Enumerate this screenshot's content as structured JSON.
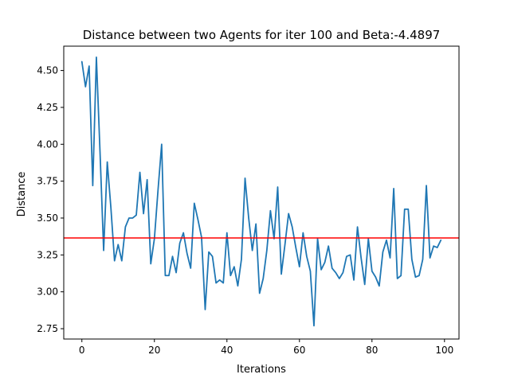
{
  "chart_data": {
    "type": "line",
    "title": "Distance between two Agents for iter 100 and Beta:-4.4897",
    "xlabel": "Iterations",
    "ylabel": "Distance",
    "xlim": [
      -5,
      104
    ],
    "ylim": [
      2.68,
      4.665
    ],
    "xticks": [
      0,
      20,
      40,
      60,
      80,
      100
    ],
    "yticks": [
      2.75,
      3.0,
      3.25,
      3.5,
      3.75,
      4.0,
      4.25,
      4.5
    ],
    "ytick_labels": [
      "2.75",
      "3.00",
      "3.25",
      "3.50",
      "3.75",
      "4.00",
      "4.25",
      "4.50"
    ],
    "xtick_labels": [
      "0",
      "20",
      "40",
      "60",
      "80",
      "100"
    ],
    "grid": false,
    "series": [
      {
        "color": "#1f77b4",
        "x": [
          0,
          1,
          2,
          3,
          4,
          5,
          6,
          7,
          8,
          9,
          10,
          11,
          12,
          13,
          14,
          15,
          16,
          17,
          18,
          19,
          20,
          21,
          22,
          23,
          24,
          25,
          26,
          27,
          28,
          29,
          30,
          31,
          32,
          33,
          34,
          35,
          36,
          37,
          38,
          39,
          40,
          41,
          42,
          43,
          44,
          45,
          46,
          47,
          48,
          49,
          50,
          51,
          52,
          53,
          54,
          55,
          56,
          57,
          58,
          59,
          60,
          61,
          62,
          63,
          64,
          65,
          66,
          67,
          68,
          69,
          70,
          71,
          72,
          73,
          74,
          75,
          76,
          77,
          78,
          79,
          80,
          81,
          82,
          83,
          84,
          85,
          86,
          87,
          88,
          89,
          90,
          91,
          92,
          93,
          94,
          95,
          96,
          97,
          98,
          99
        ],
        "y": [
          4.56,
          4.39,
          4.53,
          3.72,
          4.59,
          3.95,
          3.28,
          3.88,
          3.57,
          3.21,
          3.32,
          3.21,
          3.44,
          3.5,
          3.5,
          3.52,
          3.81,
          3.53,
          3.76,
          3.19,
          3.36,
          3.69,
          4.0,
          3.11,
          3.11,
          3.24,
          3.13,
          3.33,
          3.4,
          3.26,
          3.16,
          3.6,
          3.49,
          3.37,
          2.88,
          3.27,
          3.24,
          3.06,
          3.08,
          3.06,
          3.4,
          3.11,
          3.17,
          3.04,
          3.22,
          3.77,
          3.5,
          3.28,
          3.46,
          2.99,
          3.09,
          3.28,
          3.55,
          3.36,
          3.71,
          3.12,
          3.32,
          3.53,
          3.44,
          3.3,
          3.17,
          3.4,
          3.24,
          3.14,
          2.77,
          3.36,
          3.15,
          3.2,
          3.31,
          3.16,
          3.13,
          3.09,
          3.13,
          3.24,
          3.25,
          3.08,
          3.44,
          3.23,
          3.05,
          3.36,
          3.14,
          3.1,
          3.04,
          3.27,
          3.35,
          3.23,
          3.7,
          3.09,
          3.11,
          3.56,
          3.56,
          3.22,
          3.1,
          3.11,
          3.22,
          3.72,
          3.23,
          3.31,
          3.3,
          3.35
        ]
      }
    ],
    "reference_line": {
      "y": 3.365,
      "color": "#ff0000",
      "orientation": "horizontal"
    }
  }
}
